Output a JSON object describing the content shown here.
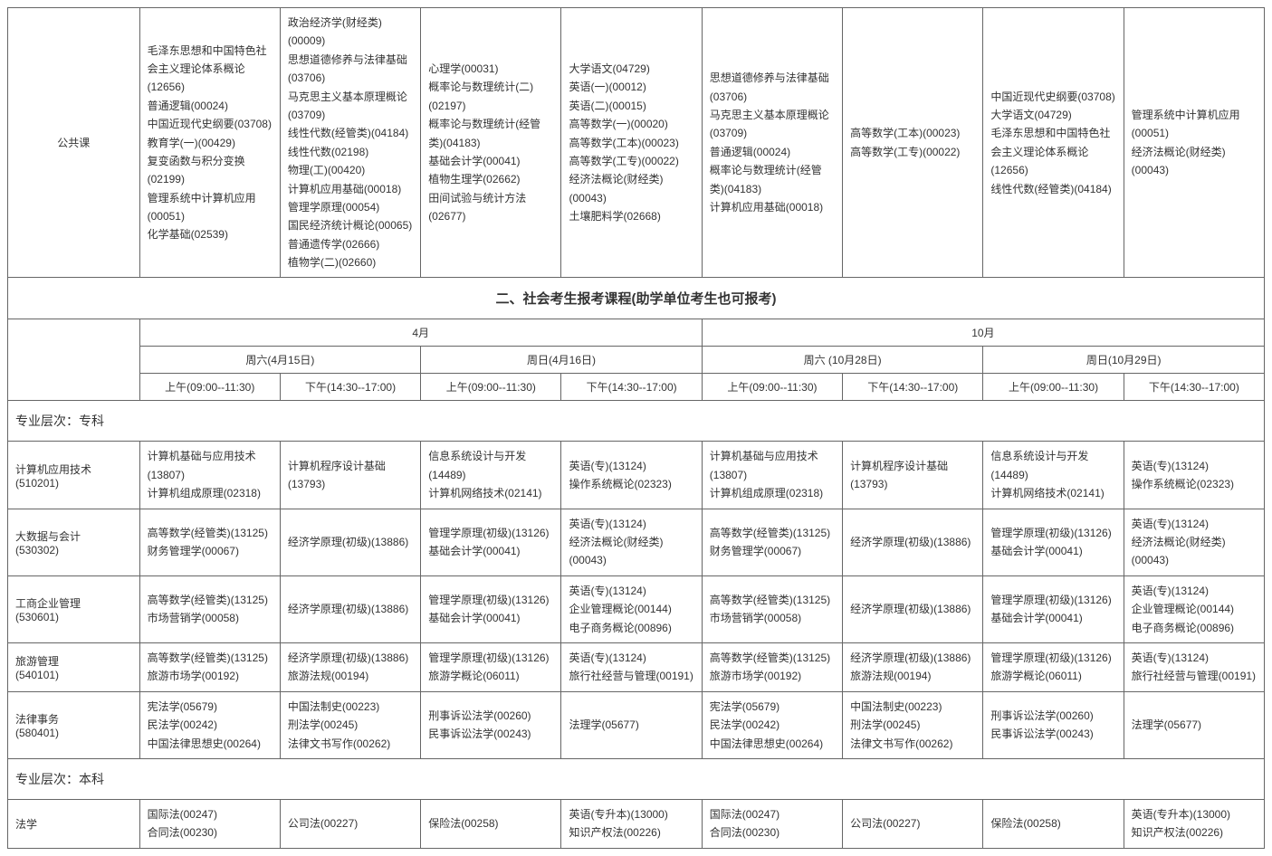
{
  "top_row": {
    "label": "公共课",
    "cells": [
      "毛泽东思想和中国特色社会主义理论体系概论(12656)\n普通逻辑(00024)\n中国近现代史纲要(03708)\n教育学(一)(00429)\n复变函数与积分变换(02199)\n管理系统中计算机应用(00051)\n化学基础(02539)",
      "政治经济学(财经类)(00009)\n思想道德修养与法律基础(03706)\n马克思主义基本原理概论(03709)\n线性代数(经管类)(04184)\n线性代数(02198)\n物理(工)(00420)\n计算机应用基础(00018)\n管理学原理(00054)\n国民经济统计概论(00065)\n普通遗传学(02666)\n植物学(二)(02660)",
      "心理学(00031)\n概率论与数理统计(二)(02197)\n概率论与数理统计(经管类)(04183)\n基础会计学(00041)\n植物生理学(02662)\n田间试验与统计方法(02677)",
      "大学语文(04729)\n英语(一)(00012)\n英语(二)(00015)\n高等数学(一)(00020)\n高等数学(工本)(00023)\n高等数学(工专)(00022)\n经济法概论(财经类)(00043)\n土壤肥料学(02668)",
      "思想道德修养与法律基础(03706)\n马克思主义基本原理概论(03709)\n普通逻辑(00024)\n概率论与数理统计(经管类)(04183)\n计算机应用基础(00018)",
      "高等数学(工本)(00023)\n高等数学(工专)(00022)",
      "中国近现代史纲要(03708)\n大学语文(04729)\n毛泽东思想和中国特色社会主义理论体系概论(12656)\n线性代数(经管类)(04184)",
      "管理系统中计算机应用(00051)\n经济法概论(财经类)(00043)"
    ]
  },
  "section2_title": "二、社会考生报考课程(助学单位考生也可报考)",
  "months": {
    "apr": "4月",
    "oct": "10月"
  },
  "days": {
    "sat_apr": "周六(4月15日)",
    "sun_apr": "周日(4月16日)",
    "sat_oct": "周六 (10月28日)",
    "sun_oct": "周日(10月29日)"
  },
  "slots": {
    "am": "上午(09:00--11:30)",
    "pm": "下午(14:30--17:00)"
  },
  "level_zhuanke": "专业层次：专科",
  "level_benke": "专业层次：本科",
  "rows": [
    {
      "label": "计算机应用技术(510201)",
      "cells": [
        "计算机基础与应用技术(13807)\n计算机组成原理(02318)",
        "计算机程序设计基础(13793)",
        "信息系统设计与开发(14489)\n计算机网络技术(02141)",
        "英语(专)(13124)\n操作系统概论(02323)",
        "计算机基础与应用技术(13807)\n计算机组成原理(02318)",
        "计算机程序设计基础(13793)",
        "信息系统设计与开发(14489)\n计算机网络技术(02141)",
        "英语(专)(13124)\n操作系统概论(02323)"
      ]
    },
    {
      "label": "大数据与会计(530302)",
      "cells": [
        "高等数学(经管类)(13125)\n财务管理学(00067)",
        "经济学原理(初级)(13886)",
        "管理学原理(初级)(13126)\n基础会计学(00041)",
        "英语(专)(13124)\n经济法概论(财经类)(00043)",
        "高等数学(经管类)(13125)\n财务管理学(00067)",
        "经济学原理(初级)(13886)",
        "管理学原理(初级)(13126)\n基础会计学(00041)",
        "英语(专)(13124)\n经济法概论(财经类)(00043)"
      ]
    },
    {
      "label": "工商企业管理(530601)",
      "cells": [
        "高等数学(经管类)(13125)\n市场营销学(00058)",
        "经济学原理(初级)(13886)",
        "管理学原理(初级)(13126)\n基础会计学(00041)",
        "英语(专)(13124)\n企业管理概论(00144)\n电子商务概论(00896)",
        "高等数学(经管类)(13125)\n市场营销学(00058)",
        "经济学原理(初级)(13886)",
        "管理学原理(初级)(13126)\n基础会计学(00041)",
        "英语(专)(13124)\n企业管理概论(00144)\n电子商务概论(00896)"
      ]
    },
    {
      "label": "旅游管理(540101)",
      "cells": [
        "高等数学(经管类)(13125)\n旅游市场学(00192)",
        "经济学原理(初级)(13886)\n旅游法规(00194)",
        "管理学原理(初级)(13126)\n旅游学概论(06011)",
        "英语(专)(13124)\n旅行社经营与管理(00191)",
        "高等数学(经管类)(13125)\n旅游市场学(00192)",
        "经济学原理(初级)(13886)\n旅游法规(00194)",
        "管理学原理(初级)(13126)\n旅游学概论(06011)",
        "英语(专)(13124)\n旅行社经营与管理(00191)"
      ]
    },
    {
      "label": "法律事务(580401)",
      "cells": [
        "宪法学(05679)\n民法学(00242)\n中国法律思想史(00264)",
        "中国法制史(00223)\n刑法学(00245)\n法律文书写作(00262)",
        "刑事诉讼法学(00260)\n民事诉讼法学(00243)",
        "法理学(05677)",
        "宪法学(05679)\n民法学(00242)\n中国法律思想史(00264)",
        "中国法制史(00223)\n刑法学(00245)\n法律文书写作(00262)",
        "刑事诉讼法学(00260)\n民事诉讼法学(00243)",
        "法理学(05677)"
      ]
    }
  ],
  "benke_rows": [
    {
      "label": "法学",
      "cells": [
        "国际法(00247)\n合同法(00230)",
        "公司法(00227)",
        "保险法(00258)",
        "英语(专升本)(13000)\n知识产权法(00226)",
        "国际法(00247)\n合同法(00230)",
        "公司法(00227)",
        "保险法(00258)",
        "英语(专升本)(13000)\n知识产权法(00226)"
      ]
    }
  ]
}
